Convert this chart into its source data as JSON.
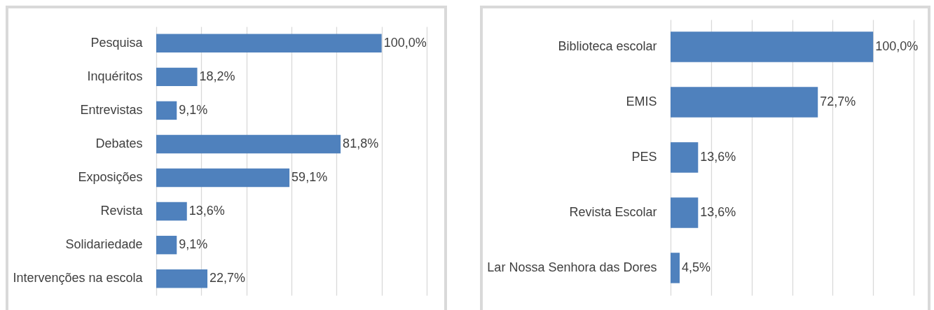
{
  "chart_data": [
    {
      "type": "bar",
      "orientation": "horizontal",
      "categories": [
        "Pesquisa",
        "Inquéritos",
        "Entrevistas",
        "Debates",
        "Exposições",
        "Revista",
        "Solidariedade",
        "Intervenções na escola"
      ],
      "values": [
        100.0,
        18.2,
        9.1,
        81.8,
        59.1,
        13.6,
        9.1,
        22.7
      ],
      "value_labels": [
        "100,0%",
        "18,2%",
        "9,1%",
        "81,8%",
        "59,1%",
        "13,6%",
        "9,1%",
        "22,7%"
      ],
      "color": "#4f81bd",
      "xlim": [
        0,
        120
      ],
      "xticks": [
        {
          "value": 0,
          "label": null
        },
        {
          "value": 20,
          "label": null
        },
        {
          "value": 40,
          "label": null
        },
        {
          "value": 60,
          "label": null
        },
        {
          "value": 80,
          "label": null
        },
        {
          "value": 100,
          "label": null
        },
        {
          "value": 120,
          "label": null
        }
      ],
      "grid": "x",
      "tick_labels": "y"
    },
    {
      "type": "bar",
      "orientation": "horizontal",
      "categories": [
        "Biblioteca escolar",
        "EMIS",
        "PES",
        "Revista Escolar",
        "Lar Nossa Senhora das Dores"
      ],
      "values": [
        100.0,
        72.7,
        13.6,
        13.6,
        4.5
      ],
      "value_labels": [
        "100,0%",
        "72,7%",
        "13,6%",
        "13,6%",
        "4,5%"
      ],
      "color": "#4f81bd",
      "xlim": [
        0,
        120
      ],
      "xticks": [
        {
          "value": 0,
          "label": null
        },
        {
          "value": 20,
          "label": null
        },
        {
          "value": 40,
          "label": null
        },
        {
          "value": 60,
          "label": null
        },
        {
          "value": 80,
          "label": null
        },
        {
          "value": 100,
          "label": null
        },
        {
          "value": 120,
          "label": null
        }
      ],
      "grid": "x",
      "tick_labels": "y"
    }
  ]
}
